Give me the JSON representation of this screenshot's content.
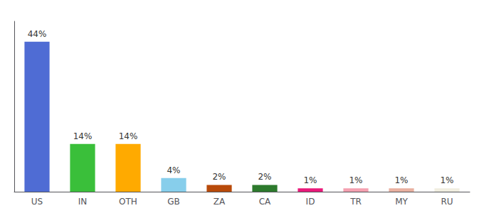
{
  "chart_data": {
    "type": "bar",
    "categories": [
      "US",
      "IN",
      "OTH",
      "GB",
      "ZA",
      "CA",
      "ID",
      "TR",
      "MY",
      "RU"
    ],
    "values": [
      44,
      14,
      14,
      4,
      2,
      2,
      1,
      1,
      1,
      1
    ],
    "value_labels": [
      "44%",
      "14%",
      "14%",
      "4%",
      "2%",
      "2%",
      "1%",
      "1%",
      "1%",
      "1%"
    ],
    "colors": [
      "#4f6cd4",
      "#3abf3a",
      "#ffaa00",
      "#87ceeb",
      "#b84a0a",
      "#2d7a2d",
      "#e8197a",
      "#f4a0b0",
      "#e8b0a0",
      "#f0ede0"
    ],
    "ylim": [
      0,
      50
    ],
    "grid": false,
    "tick_labels": "x",
    "data_labels": true
  }
}
